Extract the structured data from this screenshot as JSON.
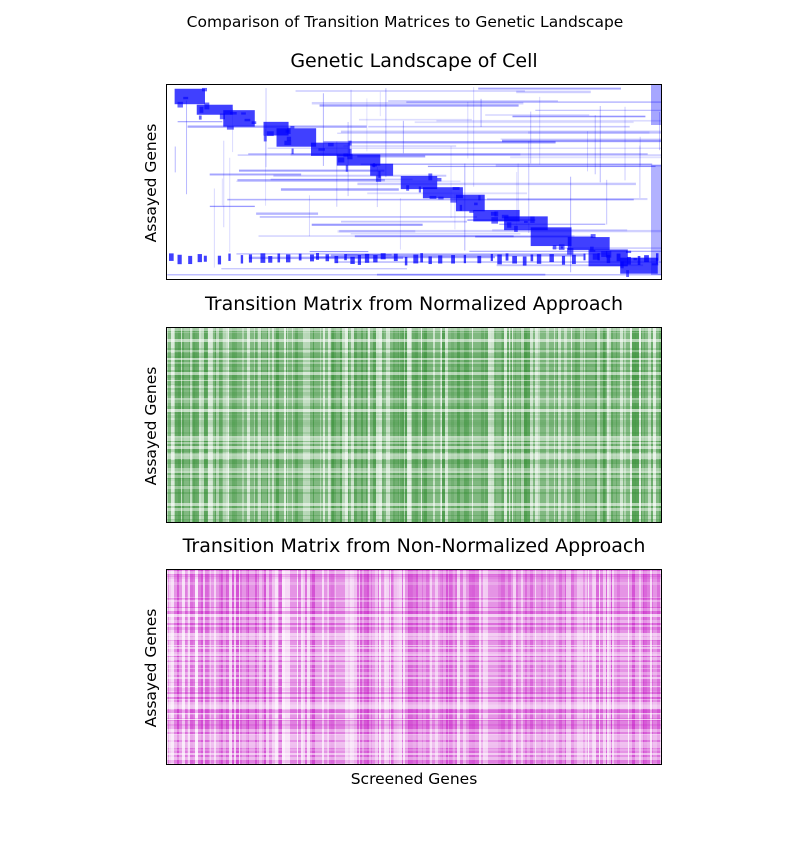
{
  "figure": {
    "suptitle": "Comparison of Transition Matrices to Genetic Landscape"
  },
  "chart_data": [
    {
      "type": "heatmap",
      "title": "Genetic Landscape of Cell",
      "xlabel": "",
      "ylabel": "Assayed Genes",
      "color": "#0000ff",
      "ticks": "none",
      "pattern": "block-diagonal"
    },
    {
      "type": "heatmap",
      "title": "Transition Matrix from Normalized Approach",
      "xlabel": "",
      "ylabel": "Assayed Genes",
      "color": "#1a7f1a",
      "ticks": "none",
      "pattern": "dense-uniform"
    },
    {
      "type": "heatmap",
      "title": "Transition Matrix from Non-Normalized Approach",
      "xlabel": "Screened Genes",
      "ylabel": "Assayed Genes",
      "color": "#c000c0",
      "ticks": "none",
      "pattern": "dense-uniform"
    }
  ]
}
